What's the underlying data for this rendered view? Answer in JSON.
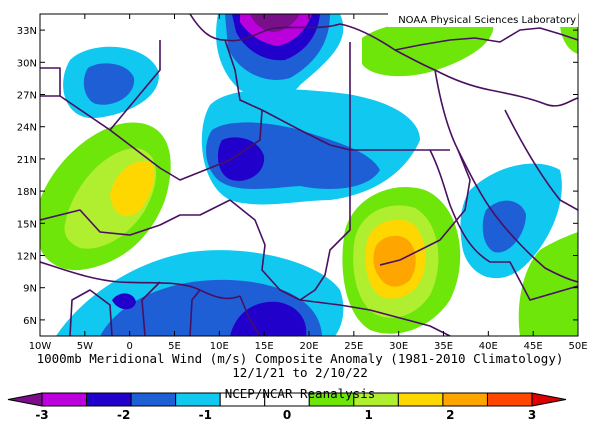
{
  "credit": "NOAA Physical Sciences Laboratory",
  "title_line1": "1000mb Meridional Wind (m/s) Composite Anomaly (1981-2010 Climatology)",
  "title_line2": "12/1/21 to 2/10/22",
  "source": "NCEP/NCAR Reanalysis",
  "lon_labels": [
    "10W",
    "5W",
    "0",
    "5E",
    "10E",
    "15E",
    "20E",
    "25E",
    "30E",
    "35E",
    "40E",
    "45E",
    "50E"
  ],
  "lat_labels": [
    "33N",
    "30N",
    "27N",
    "24N",
    "21N",
    "18N",
    "15N",
    "12N",
    "9N",
    "6N"
  ],
  "colorbar": {
    "labels": [
      "-3",
      "-2",
      "-1",
      "0",
      "1",
      "2",
      "3"
    ],
    "colors": [
      "#7a0f8a",
      "#bb00dd",
      "#2200cc",
      "#1e5fd6",
      "#10c8f0",
      "#ffffff",
      "#ffffff",
      "#6ee60a",
      "#b0ee30",
      "#ffd700",
      "#ffa500",
      "#ff4500",
      "#dd0000"
    ],
    "range": [
      -3,
      3
    ]
  },
  "chart_data": {
    "type": "heatmap",
    "title": "1000mb Meridional Wind (m/s) Composite Anomaly (1981-2010 Climatology)",
    "subtitle": "12/1/21 to 2/10/22",
    "lon_range": [
      -10,
      50
    ],
    "lat_range": [
      4.5,
      34.5
    ],
    "features": [
      {
        "kind": "minimum",
        "lon": 14.5,
        "lat": 33.5,
        "value": -3.0
      },
      {
        "kind": "minimum",
        "lon": 12.5,
        "lat": 20.5,
        "value": -1.5
      },
      {
        "kind": "minimum",
        "lon": 14.5,
        "lat": 6.0,
        "value": -1.4
      },
      {
        "kind": "minimum",
        "lon": -2.5,
        "lat": 27.5,
        "value": -0.9
      },
      {
        "kind": "maximum",
        "lon": 30.0,
        "lat": 12.0,
        "value": 2.4
      },
      {
        "kind": "maximum",
        "lon": 0.0,
        "lat": 18.5,
        "value": 1.6
      },
      {
        "kind": "maximum",
        "lon": 37.0,
        "lat": 32.0,
        "value": 0.8
      },
      {
        "kind": "maximum",
        "lon": 49.0,
        "lat": 10.0,
        "value": 0.7
      }
    ]
  }
}
